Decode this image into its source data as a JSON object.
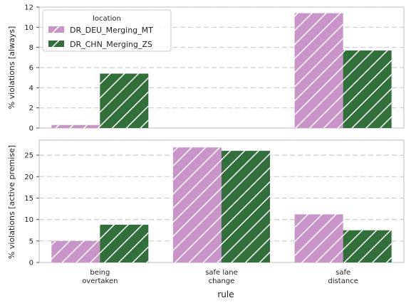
{
  "chart_data": [
    {
      "type": "bar",
      "ylabel": "% violations [always]",
      "ylim": [
        0,
        12
      ],
      "yticks": [
        0,
        2,
        4,
        6,
        8,
        10,
        12
      ],
      "grid": "horizontal dashed",
      "categories": [
        "being\novertaken",
        "safe lane\nchange",
        "safe\ndistance"
      ],
      "series": [
        {
          "name": "DR_DEU_Merging_MT",
          "values": [
            0.3,
            0,
            11.4
          ]
        },
        {
          "name": "DR_CHN_Merging_ZS",
          "values": [
            5.4,
            0,
            7.7
          ]
        }
      ]
    },
    {
      "type": "bar",
      "ylabel": "% violations [active premise]",
      "ylim": [
        0,
        28.5
      ],
      "yticks": [
        0,
        5,
        10,
        15,
        20,
        25
      ],
      "grid": "horizontal dashed",
      "categories": [
        "being\novertaken",
        "safe lane\nchange",
        "safe\ndistance"
      ],
      "series": [
        {
          "name": "DR_DEU_Merging_MT",
          "values": [
            5.0,
            26.8,
            11.2
          ]
        },
        {
          "name": "DR_CHN_Merging_ZS",
          "values": [
            8.8,
            26.0,
            7.5
          ]
        }
      ]
    }
  ],
  "xlabel": "rule",
  "category_labels": [
    [
      "being",
      "overtaken"
    ],
    [
      "safe lane",
      "change"
    ],
    [
      "safe",
      "distance"
    ]
  ],
  "legend": {
    "title": "location",
    "placement": "top-left",
    "entries": [
      "DR_DEU_Merging_MT",
      "DR_CHN_Merging_ZS"
    ]
  },
  "colors": {
    "DR_DEU_Merging_MT": "#c994c7",
    "DR_CHN_Merging_ZS": "#31703a",
    "grid": "#cccccc",
    "axis": "#bbbbbb"
  }
}
